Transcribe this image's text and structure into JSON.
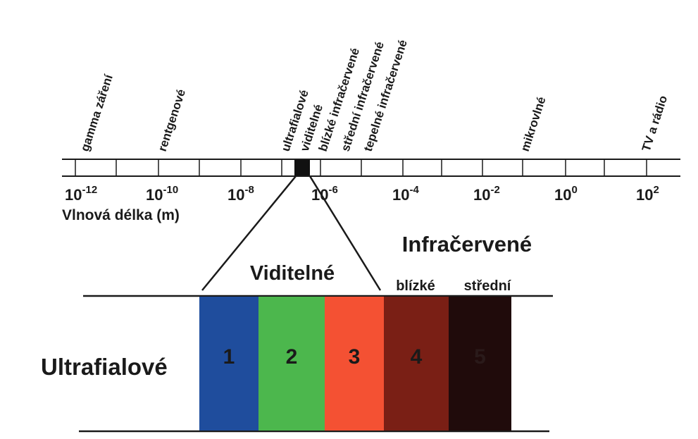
{
  "scale": {
    "bands": [
      "gamma záření",
      "rentgenové",
      "ultrafialové",
      "viditelné",
      "blízké infračervené",
      "střední infračervené",
      "tepelné infračervené",
      "mikrovlné",
      "TV a rádio"
    ],
    "ticks": [
      {
        "base": "10",
        "exponent": "-12"
      },
      {
        "base": "10",
        "exponent": "-10"
      },
      {
        "base": "10",
        "exponent": "-8"
      },
      {
        "base": "10",
        "exponent": "-6"
      },
      {
        "base": "10",
        "exponent": "-4"
      },
      {
        "base": "10",
        "exponent": "-2"
      },
      {
        "base": "10",
        "exponent": "0"
      },
      {
        "base": "10",
        "exponent": "2"
      }
    ],
    "axis_label": "Vlnová délka (m)"
  },
  "detail": {
    "left_label": "Ultrafialové",
    "visible_label": "Viditelné",
    "infrared_label": "Infračervené",
    "near_label": "blízké",
    "mid_label": "střední",
    "blocks": [
      "1",
      "2",
      "3",
      "4",
      "5"
    ]
  }
}
